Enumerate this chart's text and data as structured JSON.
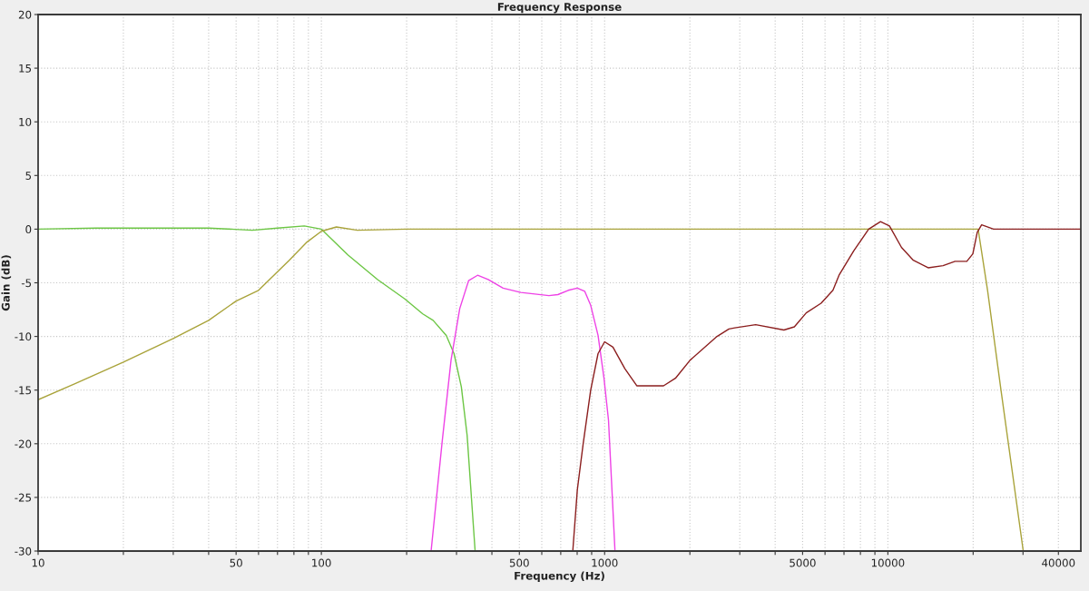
{
  "chart_data": {
    "type": "line",
    "title": "Frequency Response",
    "xlabel": "Frequency (Hz)",
    "ylabel": "Gain (dB)",
    "log": "x",
    "grid": true,
    "xlim": [
      10,
      48000
    ],
    "ylim": [
      -30,
      20
    ],
    "xticks": [
      10,
      {
        "value": 20,
        "label": null
      },
      {
        "value": 30,
        "label": null
      },
      {
        "value": 40,
        "label": null
      },
      50,
      {
        "value": 60,
        "label": null
      },
      {
        "value": 70,
        "label": null
      },
      {
        "value": 80,
        "label": null
      },
      {
        "value": 90,
        "label": null
      },
      100,
      {
        "value": 200,
        "label": null
      },
      {
        "value": 300,
        "label": null
      },
      {
        "value": 400,
        "label": null
      },
      500,
      {
        "value": 600,
        "label": null
      },
      {
        "value": 700,
        "label": null
      },
      {
        "value": 800,
        "label": null
      },
      {
        "value": 900,
        "label": null
      },
      1000,
      {
        "value": 2000,
        "label": null
      },
      {
        "value": 3000,
        "label": null
      },
      {
        "value": 4000,
        "label": null
      },
      5000,
      {
        "value": 6000,
        "label": null
      },
      {
        "value": 7000,
        "label": null
      },
      {
        "value": 8000,
        "label": null
      },
      {
        "value": 9000,
        "label": null
      },
      10000,
      {
        "value": 20000,
        "label": null
      },
      {
        "value": 30000,
        "label": null
      },
      40000
    ],
    "yticks": [
      -30,
      -25,
      -20,
      -15,
      -10,
      -5,
      0,
      5,
      10,
      15,
      20
    ],
    "series": [
      {
        "color": "#6cc644",
        "x": [
          10,
          16,
          40,
          57,
          70,
          87,
          100,
          124,
          158,
          197,
          228,
          248,
          276,
          294,
          312,
          327,
          349
        ],
        "values": [
          0,
          0.1,
          0.1,
          -0.1,
          0.1,
          0.3,
          0,
          -2.4,
          -4.7,
          -6.5,
          -7.9,
          -8.5,
          -9.9,
          -11.6,
          -14.7,
          -19.2,
          -30
        ]
      },
      {
        "color": "#a9a33a",
        "x": [
          10,
          13.5,
          20,
          30,
          40,
          50,
          60,
          77,
          89,
          100,
          113,
          134,
          200,
          500,
          1000,
          2000,
          5000,
          10000,
          20000,
          20830,
          22490,
          25080,
          30060
        ],
        "values": [
          -15.9,
          -14.4,
          -12.4,
          -10.2,
          -8.5,
          -6.7,
          -5.7,
          -2.9,
          -1.2,
          -0.2,
          0.2,
          -0.1,
          0,
          0,
          0,
          0,
          0,
          0,
          0,
          0,
          -5.7,
          -15,
          -30
        ]
      },
      {
        "color": "#ee42e6",
        "x": [
          244,
          267,
          287,
          308,
          331,
          356,
          388,
          438,
          506,
          636,
          684,
          744,
          801,
          851,
          893,
          948,
          995,
          1032,
          1088
        ],
        "values": [
          -30,
          -19.8,
          -12.2,
          -7.4,
          -4.8,
          -4.3,
          -4.7,
          -5.5,
          -5.9,
          -6.2,
          -6.1,
          -5.7,
          -5.5,
          -5.8,
          -7.1,
          -9.9,
          -13.9,
          -17.8,
          -30
        ]
      },
      {
        "color": "#8b1e1e",
        "x": [
          772,
          801,
          840,
          893,
          948,
          1000,
          1070,
          1179,
          1299,
          1614,
          1778,
          2005,
          2494,
          2747,
          2883,
          3414,
          4296,
          4677,
          5150,
          5812,
          6398,
          6722,
          7584,
          8556,
          9420,
          10130,
          11170,
          12300,
          13870,
          15660,
          17260,
          19000,
          19950,
          20680,
          21430,
          23610,
          48000
        ],
        "values": [
          -30,
          -24.3,
          -20,
          -15,
          -11.6,
          -10.5,
          -11,
          -13,
          -14.6,
          -14.6,
          -13.9,
          -12.2,
          -10,
          -9.3,
          -9.2,
          -8.9,
          -9.4,
          -9.1,
          -7.8,
          -6.9,
          -5.7,
          -4.3,
          -2,
          0,
          0.7,
          0.3,
          -1.7,
          -2.9,
          -3.6,
          -3.4,
          -3,
          -3,
          -2.3,
          -0.3,
          0.4,
          0,
          0
        ]
      }
    ]
  }
}
